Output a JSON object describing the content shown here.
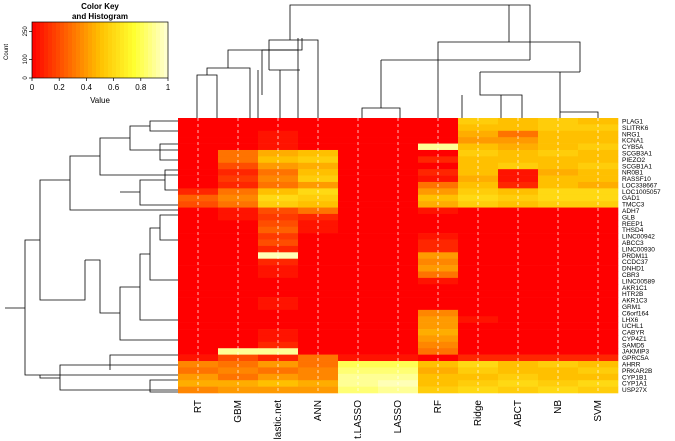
{
  "chart_data": {
    "type": "heatmap",
    "columns": [
      "RT",
      "GBM",
      "lastic.net",
      "ANN",
      "t.LASSO",
      "LASSO",
      "RF",
      "Ridge",
      "ABCT",
      "NB",
      "SVM"
    ],
    "rows": [
      "PLAG1",
      "SLITRK6",
      "NRG1",
      "KCNA1",
      "CYB5A",
      "SCGB3A1",
      "PIEZO2",
      "SCGB1A1",
      "NR0B1",
      "RASSF10",
      "LOC338667",
      "LOC1005057",
      "GAD1",
      "TMCC3",
      "ADH7",
      "GLB",
      "REEP1",
      "THSD4",
      "LINC00942",
      "ABCC3",
      "LINC00930",
      "PRDM11",
      "CCDC37",
      "DNHD1",
      "CBR3",
      "LINC00589",
      "AKR1C1",
      "HTR2B",
      "AKR1C3",
      "GRM1",
      "C6orf164",
      "LHX6",
      "UCHL1",
      "CABYR",
      "CYP4Z1",
      "SAMD5",
      "JAKMIP3",
      "GPRC5A",
      "AHRR",
      "PRKAR2B",
      "CYP1B1",
      "CYP1A1",
      "USP27X"
    ],
    "values": [
      [
        0,
        0,
        0,
        0,
        0,
        0,
        0,
        0.55,
        0.5,
        0.55,
        0.5
      ],
      [
        0,
        0,
        0,
        0,
        0,
        0,
        0,
        0.5,
        0.5,
        0.55,
        0.55
      ],
      [
        0,
        0,
        0.05,
        0,
        0,
        0,
        0,
        0.45,
        0.3,
        0.5,
        0.5
      ],
      [
        0,
        0,
        0.05,
        0,
        0,
        0,
        0,
        0.4,
        0.4,
        0.5,
        0.5
      ],
      [
        0,
        0,
        0.05,
        0,
        0,
        0,
        0.9,
        0.5,
        0.45,
        0.5,
        0.55
      ],
      [
        0,
        0.3,
        0.45,
        0.5,
        0,
        0,
        0,
        0.55,
        0.5,
        0.55,
        0.5
      ],
      [
        0,
        0.3,
        0.5,
        0.55,
        0,
        0,
        0.1,
        0.5,
        0.5,
        0.5,
        0.5
      ],
      [
        0,
        0.2,
        0.4,
        0.45,
        0,
        0,
        0,
        0.5,
        0.55,
        0.5,
        0.55
      ],
      [
        0,
        0.1,
        0.3,
        0.5,
        0,
        0,
        0.1,
        0.5,
        0.05,
        0.45,
        0.5
      ],
      [
        0,
        0.15,
        0.35,
        0.55,
        0,
        0,
        0.05,
        0.45,
        0.05,
        0.5,
        0.5
      ],
      [
        0,
        0.1,
        0.3,
        0.4,
        0,
        0,
        0.3,
        0.5,
        0.1,
        0.5,
        0.45
      ],
      [
        0.1,
        0.3,
        0.5,
        0.6,
        0,
        0,
        0.4,
        0.55,
        0.5,
        0.6,
        0.6
      ],
      [
        0.25,
        0.35,
        0.6,
        0.55,
        0,
        0,
        0.5,
        0.6,
        0.55,
        0.6,
        0.6
      ],
      [
        0.2,
        0.3,
        0.55,
        0.5,
        0,
        0,
        0.45,
        0.55,
        0.5,
        0.55,
        0.55
      ],
      [
        0,
        0.05,
        0.2,
        0.3,
        0,
        0,
        0.05,
        0,
        0,
        0,
        0
      ],
      [
        0,
        0.05,
        0.15,
        0.1,
        0,
        0,
        0,
        0,
        0,
        0,
        0
      ],
      [
        0,
        0,
        0.2,
        0.05,
        0,
        0,
        0,
        0,
        0,
        0,
        0
      ],
      [
        0,
        0,
        0.25,
        0.05,
        0,
        0,
        0,
        0,
        0,
        0,
        0
      ],
      [
        0,
        0,
        0.15,
        0,
        0,
        0,
        0.05,
        0,
        0,
        0,
        0
      ],
      [
        0,
        0,
        0.2,
        0,
        0,
        0,
        0.1,
        0,
        0,
        0,
        0
      ],
      [
        0,
        0,
        0.1,
        0,
        0,
        0,
        0.1,
        0,
        0,
        0,
        0
      ],
      [
        0,
        0,
        0.95,
        0,
        0,
        0,
        0.4,
        0,
        0,
        0,
        0
      ],
      [
        0,
        0,
        0.1,
        0,
        0,
        0,
        0.35,
        0,
        0,
        0,
        0
      ],
      [
        0,
        0,
        0.05,
        0,
        0,
        0,
        0.4,
        0,
        0,
        0,
        0
      ],
      [
        0,
        0,
        0.05,
        0,
        0,
        0,
        0.3,
        0,
        0,
        0,
        0
      ],
      [
        0,
        0,
        0,
        0,
        0,
        0,
        0.05,
        0,
        0,
        0,
        0
      ],
      [
        0,
        0,
        0,
        0,
        0,
        0,
        0,
        0,
        0,
        0,
        0
      ],
      [
        0,
        0,
        0,
        0,
        0,
        0,
        0,
        0,
        0,
        0,
        0
      ],
      [
        0,
        0,
        0.05,
        0,
        0,
        0,
        0,
        0,
        0,
        0,
        0
      ],
      [
        0,
        0,
        0.05,
        0,
        0,
        0,
        0,
        0,
        0,
        0,
        0
      ],
      [
        0,
        0,
        0,
        0,
        0,
        0,
        0.35,
        0,
        0,
        0,
        0
      ],
      [
        0,
        0,
        0,
        0,
        0,
        0,
        0.4,
        0.05,
        0,
        0,
        0
      ],
      [
        0,
        0,
        0,
        0,
        0,
        0,
        0.4,
        0,
        0,
        0,
        0
      ],
      [
        0,
        0,
        0.05,
        0,
        0,
        0,
        0.45,
        0,
        0,
        0,
        0
      ],
      [
        0,
        0,
        0.05,
        0,
        0,
        0,
        0.4,
        0,
        0,
        0,
        0
      ],
      [
        0,
        0,
        0.1,
        0,
        0,
        0,
        0.35,
        0,
        0,
        0,
        0
      ],
      [
        0,
        0.9,
        0.9,
        0,
        0,
        0,
        0.3,
        0,
        0,
        0,
        0
      ],
      [
        0.05,
        0.2,
        0.1,
        0.3,
        0.05,
        0.05,
        0,
        0.1,
        0.1,
        0.1,
        0.1
      ],
      [
        0.35,
        0.3,
        0.4,
        0.3,
        0.8,
        0.8,
        0.5,
        0.6,
        0.5,
        0.55,
        0.5
      ],
      [
        0.3,
        0.35,
        0.3,
        0.35,
        0.85,
        0.85,
        0.45,
        0.55,
        0.5,
        0.5,
        0.55
      ],
      [
        0.4,
        0.3,
        0.4,
        0.35,
        0.9,
        0.9,
        0.5,
        0.5,
        0.55,
        0.5,
        0.5
      ],
      [
        0.45,
        0.45,
        0.5,
        0.45,
        0.9,
        0.95,
        0.5,
        0.55,
        0.6,
        0.55,
        0.6
      ],
      [
        0.35,
        0.4,
        0.4,
        0.4,
        0.85,
        0.9,
        0.55,
        0.6,
        0.55,
        0.6,
        0.55
      ]
    ],
    "colors": [
      "#ff0000",
      "#ff6000",
      "#ffc000",
      "#ffff30",
      "#ffffd8"
    ],
    "color_key": {
      "title": "Color Key",
      "subtitle": "and Histogram",
      "xlabel": "Value",
      "ylabel": "Count",
      "xlim": [
        0,
        1
      ],
      "xticks": [
        0,
        0.2,
        0.4,
        0.6,
        0.8,
        1
      ],
      "ylim": [
        0,
        300
      ],
      "yticks": [
        0,
        100,
        250
      ]
    }
  }
}
